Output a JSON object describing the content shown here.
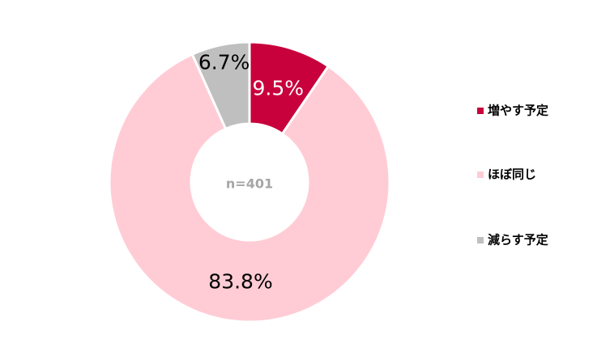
{
  "chart_data": {
    "type": "donut",
    "categories": [
      "増やす予定",
      "ほぼ同じ",
      "減らす予定"
    ],
    "values": [
      9.5,
      83.8,
      6.7
    ],
    "value_labels": [
      "9.5%",
      "83.8%",
      "6.7%"
    ],
    "colors": [
      "#c8003c",
      "#ffccd5",
      "#bfbfbf"
    ],
    "annotation": "n=401",
    "legend": "right"
  }
}
